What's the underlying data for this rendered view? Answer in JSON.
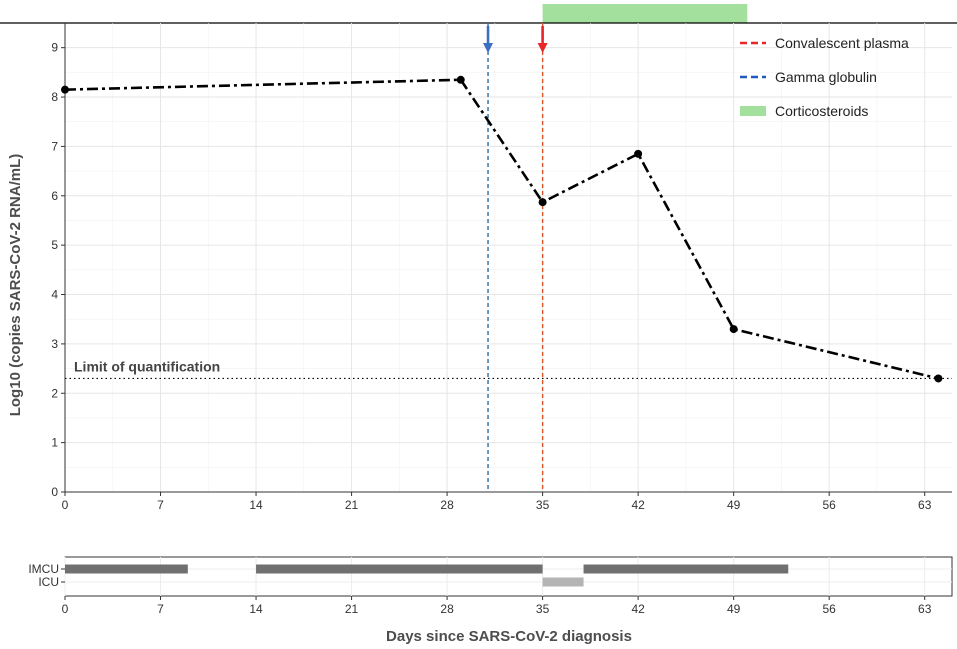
{
  "chart_data": [
    {
      "type": "line",
      "xlabel": "",
      "ylabel": "Log10 (copies SARS-CoV-2 RNA/mL)",
      "xlim": [
        0,
        65
      ],
      "ylim": [
        0,
        9.5
      ],
      "x_ticks": [
        0,
        7,
        14,
        21,
        28,
        35,
        42,
        49,
        56,
        63
      ],
      "y_ticks": [
        0,
        1,
        2,
        3,
        4,
        5,
        6,
        7,
        8,
        9
      ],
      "grid": true,
      "series": [
        {
          "x": [
            0,
            29,
            35,
            42,
            49,
            64
          ],
          "y": [
            8.15,
            8.35,
            5.87,
            6.85,
            3.3,
            2.3
          ],
          "color": "#000000",
          "style": "dashdot"
        }
      ],
      "reference_lines": [
        {
          "x": 31,
          "color": "#2e6da4",
          "legend": "Gamma globulin",
          "arrow_color": "#3b6fbf"
        },
        {
          "x": 35,
          "color": "#d9542b",
          "legend": "Convalescent plasma",
          "arrow_color": "#e8262a"
        }
      ],
      "hline": {
        "y": 2.3,
        "label": "Limit of quantification"
      },
      "corticosteroids": {
        "x_start": 35,
        "x_end": 50,
        "color": "#a3e09d",
        "legend": "Corticosteroids"
      },
      "legend": {
        "position": "top-right",
        "entries": [
          {
            "label": "Convalescent plasma",
            "color": "#e8262a",
            "kind": "dash"
          },
          {
            "label": "Gamma globulin",
            "color": "#2158c4",
            "kind": "dash"
          },
          {
            "label": "Corticosteroids",
            "color": "#a3e09d",
            "kind": "box"
          }
        ]
      }
    },
    {
      "type": "bar",
      "orientation": "horizontal",
      "xlabel": "Days since SARS-CoV-2 diagnosis",
      "xlim": [
        0,
        65
      ],
      "x_ticks": [
        0,
        7,
        14,
        21,
        28,
        35,
        42,
        49,
        56,
        63
      ],
      "categories": [
        "IMCU",
        "ICU"
      ],
      "segments": [
        {
          "category": "IMCU",
          "start": 0,
          "end": 9,
          "color": "#707070"
        },
        {
          "category": "IMCU",
          "start": 14,
          "end": 35,
          "color": "#707070"
        },
        {
          "category": "IMCU",
          "start": 38,
          "end": 53,
          "color": "#707070"
        },
        {
          "category": "ICU",
          "start": 35,
          "end": 38,
          "color": "#b4b4b4"
        }
      ]
    }
  ]
}
